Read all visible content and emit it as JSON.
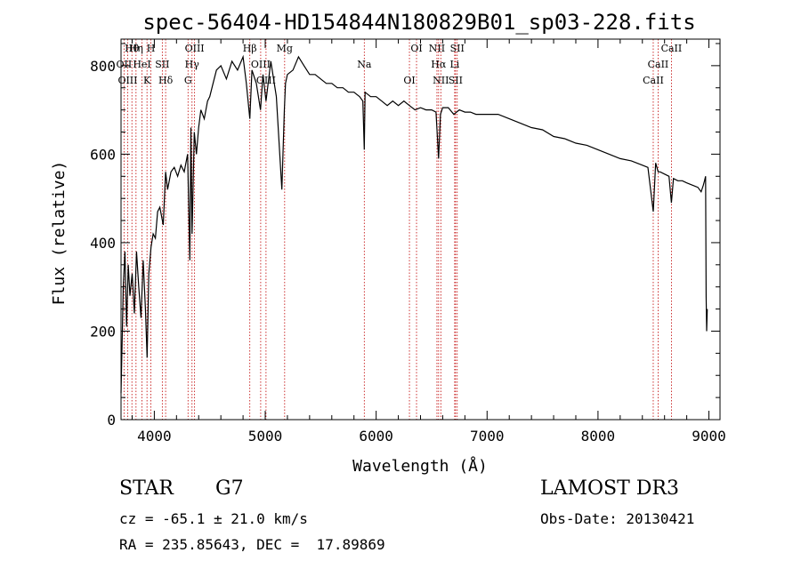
{
  "chart_data": {
    "type": "line",
    "title": "spec-56404-HD154844N180829B01_sp03-228.fits",
    "xlabel": "Wavelength (Å)",
    "ylabel": "Flux (relative)",
    "xlim": [
      3700,
      9100
    ],
    "ylim": [
      0,
      860
    ],
    "xticks": [
      4000,
      5000,
      6000,
      7000,
      8000,
      9000
    ],
    "yticks": [
      0,
      200,
      400,
      600,
      800
    ],
    "grid": false,
    "series": [
      {
        "x": [
          3700,
          3720,
          3735,
          3750,
          3765,
          3780,
          3800,
          3820,
          3840,
          3860,
          3880,
          3900,
          3920,
          3935,
          3950,
          3970,
          3990,
          4010,
          4030,
          4050,
          4080,
          4102,
          4120,
          4150,
          4180,
          4210,
          4240,
          4270,
          4300,
          4320,
          4330,
          4340,
          4360,
          4380,
          4400,
          4420,
          4450,
          4480,
          4500,
          4530,
          4560,
          4600,
          4650,
          4700,
          4750,
          4800,
          4830,
          4861,
          4880,
          4920,
          4957,
          4980,
          5007,
          5050,
          5100,
          5150,
          5172,
          5183,
          5200,
          5250,
          5300,
          5350,
          5400,
          5450,
          5500,
          5550,
          5600,
          5650,
          5700,
          5750,
          5800,
          5850,
          5880,
          5893,
          5900,
          5950,
          6000,
          6050,
          6100,
          6150,
          6200,
          6250,
          6300,
          6350,
          6400,
          6450,
          6500,
          6540,
          6563,
          6580,
          6600,
          6650,
          6700,
          6750,
          6800,
          6850,
          6900,
          6950,
          7000,
          7100,
          7200,
          7300,
          7400,
          7500,
          7600,
          7700,
          7800,
          7900,
          8000,
          8100,
          8200,
          8300,
          8400,
          8450,
          8498,
          8520,
          8542,
          8560,
          8600,
          8640,
          8662,
          8680,
          8720,
          8760,
          8800,
          8850,
          8900,
          8930,
          8950,
          8960,
          8970,
          8975,
          8980,
          8985
        ],
        "y": [
          60,
          300,
          380,
          210,
          350,
          280,
          330,
          240,
          380,
          300,
          230,
          360,
          250,
          140,
          330,
          390,
          420,
          410,
          470,
          480,
          440,
          560,
          520,
          560,
          570,
          550,
          575,
          560,
          600,
          360,
          660,
          420,
          650,
          600,
          660,
          700,
          680,
          720,
          730,
          760,
          790,
          800,
          770,
          810,
          790,
          820,
          760,
          680,
          790,
          760,
          700,
          780,
          720,
          810,
          730,
          520,
          700,
          760,
          780,
          790,
          820,
          800,
          780,
          780,
          770,
          760,
          760,
          750,
          750,
          740,
          740,
          730,
          720,
          610,
          740,
          730,
          730,
          720,
          710,
          720,
          710,
          720,
          710,
          700,
          705,
          700,
          700,
          695,
          590,
          690,
          705,
          705,
          690,
          700,
          695,
          695,
          690,
          690,
          690,
          690,
          680,
          670,
          660,
          655,
          640,
          635,
          625,
          620,
          610,
          600,
          590,
          585,
          575,
          570,
          470,
          580,
          560,
          560,
          555,
          550,
          490,
          545,
          540,
          540,
          535,
          530,
          525,
          515,
          530,
          540,
          550,
          280,
          200,
          250
        ]
      }
    ],
    "line_markers": [
      {
        "label": "Hθ",
        "x": 3798
      },
      {
        "label": "OII",
        "x": 3727
      },
      {
        "label": "OIII",
        "x": 3760
      },
      {
        "label": "Hη",
        "x": 3835
      },
      {
        "label": "HeI",
        "x": 3889
      },
      {
        "label": "K",
        "x": 3934
      },
      {
        "label": "H",
        "x": 3969
      },
      {
        "label": "SII",
        "x": 4072
      },
      {
        "label": "Hδ",
        "x": 4102
      },
      {
        "label": "OIII",
        "x": 4363
      },
      {
        "label": "Hγ",
        "x": 4340
      },
      {
        "label": "G",
        "x": 4304
      },
      {
        "label": "Mg",
        "x": 5175
      },
      {
        "label": "OIII",
        "x": 4959
      },
      {
        "label": "OIII",
        "x": 5007
      },
      {
        "label": "Hβ",
        "x": 4861
      },
      {
        "label": "Na",
        "x": 5893
      },
      {
        "label": "OI",
        "x": 6300
      },
      {
        "label": "OI",
        "x": 6364
      },
      {
        "label": "Hα",
        "x": 6563
      },
      {
        "label": "SII",
        "x": 6716
      },
      {
        "label": "NII",
        "x": 6548
      },
      {
        "label": "Li",
        "x": 6708
      },
      {
        "label": "NII",
        "x": 6583
      },
      {
        "label": "SII",
        "x": 6731
      },
      {
        "label": "CaII",
        "x": 8542
      },
      {
        "label": "CaII",
        "x": 8498
      },
      {
        "label": "CaII",
        "x": 8662
      }
    ],
    "line_colors": {
      "spectrum": "#000000",
      "markers": "#c00000"
    }
  },
  "info": {
    "object_class": "STAR",
    "subclass": "G7",
    "survey": "LAMOST DR3",
    "cz": "cz = -65.1 ± 21.0 km/s",
    "obs_date": "Obs-Date: 20130421",
    "coords": "RA = 235.85643, DEC =  17.89869"
  }
}
